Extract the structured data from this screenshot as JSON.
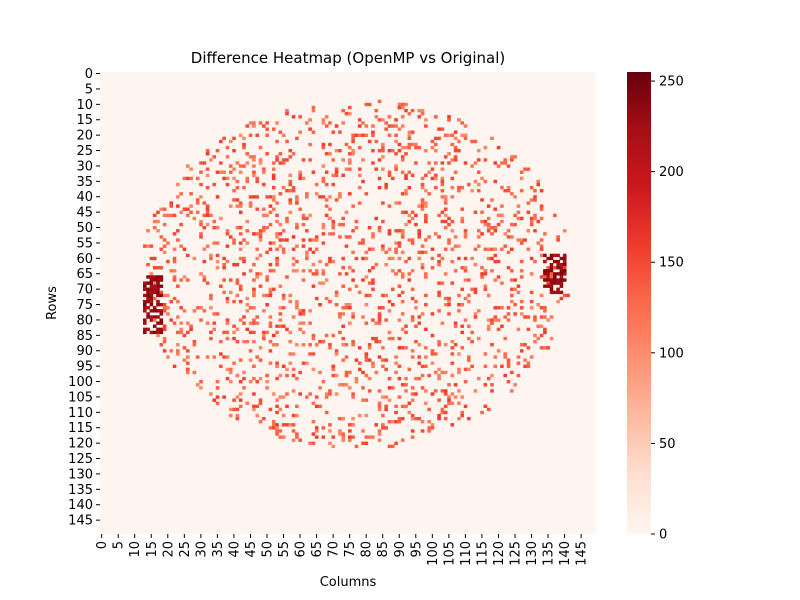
{
  "chart_data": {
    "type": "heatmap",
    "title": "Difference Heatmap (OpenMP vs Original)",
    "xlabel": "Columns",
    "ylabel": "Rows",
    "rows": 150,
    "cols": 150,
    "xticks": [
      0,
      5,
      10,
      15,
      20,
      25,
      30,
      35,
      40,
      45,
      50,
      55,
      60,
      65,
      70,
      75,
      80,
      85,
      90,
      95,
      100,
      105,
      110,
      115,
      120,
      125,
      130,
      135,
      140,
      145
    ],
    "yticks": [
      0,
      5,
      10,
      15,
      20,
      25,
      30,
      35,
      40,
      45,
      50,
      55,
      60,
      65,
      70,
      75,
      80,
      85,
      90,
      95,
      100,
      105,
      110,
      115,
      120,
      125,
      130,
      135,
      140,
      145
    ],
    "colorbar": {
      "min": 0,
      "max": 255,
      "ticks": [
        0,
        50,
        100,
        150,
        200,
        250
      ]
    },
    "colormap": "Reds",
    "colors": {
      "low": "#fff5f0",
      "mid": "#fb6a4a",
      "high": "#67000d"
    },
    "background_value": 0,
    "scatter_region": {
      "shape": "ellipse",
      "center_col": 77,
      "center_row": 65,
      "radius_col": 65,
      "radius_row": 57,
      "typical_value": 130,
      "density": 0.14
    },
    "clusters": [
      {
        "label": "left cluster",
        "col_range": [
          13,
          18
        ],
        "row_range": [
          66,
          84
        ],
        "value": 245
      },
      {
        "label": "right cluster",
        "col_range": [
          134,
          140
        ],
        "row_range": [
          59,
          71
        ],
        "value": 245
      }
    ]
  }
}
